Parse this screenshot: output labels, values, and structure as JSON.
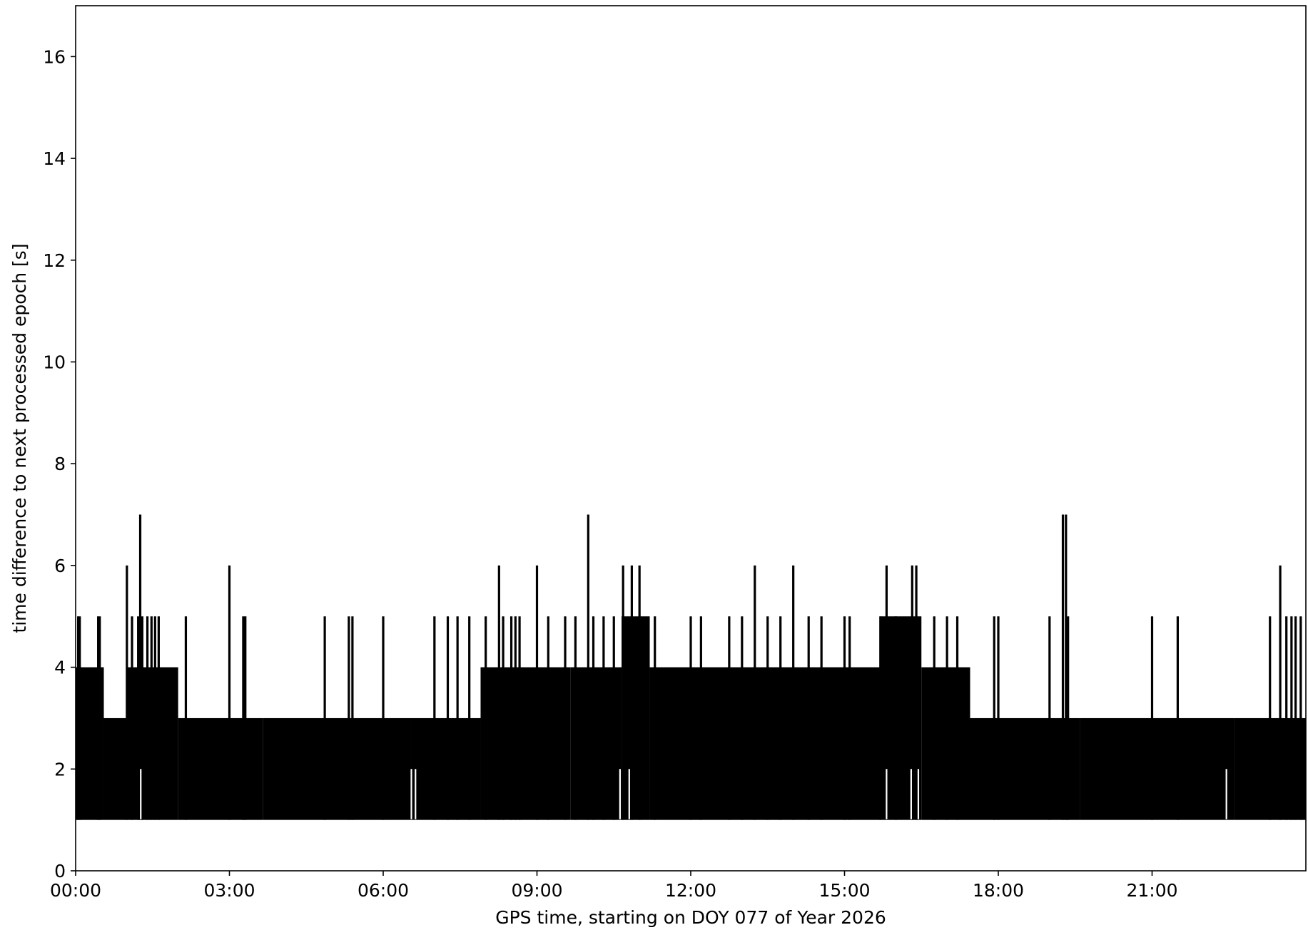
{
  "chart_data": {
    "type": "line",
    "title": "",
    "xlabel": "GPS time, starting on DOY 077 of Year 2026",
    "ylabel": "time difference to next processed epoch [s]",
    "xlim_hours": [
      0,
      24
    ],
    "ylim": [
      0,
      17
    ],
    "x_ticks": [
      {
        "hours": 0,
        "label": "00:00"
      },
      {
        "hours": 3,
        "label": "03:00"
      },
      {
        "hours": 6,
        "label": "06:00"
      },
      {
        "hours": 9,
        "label": "09:00"
      },
      {
        "hours": 12,
        "label": "12:00"
      },
      {
        "hours": 15,
        "label": "15:00"
      },
      {
        "hours": 18,
        "label": "18:00"
      },
      {
        "hours": 21,
        "label": "21:00"
      }
    ],
    "y_ticks": [
      {
        "value": 0,
        "label": "0"
      },
      {
        "value": 2,
        "label": "2"
      },
      {
        "value": 4,
        "label": "4"
      },
      {
        "value": 6,
        "label": "6"
      },
      {
        "value": 8,
        "label": "8"
      },
      {
        "value": 10,
        "label": "10"
      },
      {
        "value": 12,
        "label": "12"
      },
      {
        "value": 14,
        "label": "14"
      },
      {
        "value": 16,
        "label": "16"
      }
    ],
    "grid": false,
    "legend": "none",
    "line_color": "#000000",
    "baseline_value": 1,
    "dense_bands": [
      {
        "start_hours": 0.0,
        "end_hours": 0.55,
        "upper": 4
      },
      {
        "start_hours": 0.55,
        "end_hours": 1.0,
        "upper": 3
      },
      {
        "start_hours": 1.0,
        "end_hours": 2.0,
        "upper": 4
      },
      {
        "start_hours": 2.0,
        "end_hours": 3.65,
        "upper": 3
      },
      {
        "start_hours": 3.65,
        "end_hours": 6.55,
        "upper": 3
      },
      {
        "start_hours": 6.55,
        "end_hours": 7.9,
        "upper": 3
      },
      {
        "start_hours": 7.9,
        "end_hours": 9.65,
        "upper": 4
      },
      {
        "start_hours": 9.65,
        "end_hours": 10.65,
        "upper": 4
      },
      {
        "start_hours": 10.65,
        "end_hours": 11.2,
        "upper": 5
      },
      {
        "start_hours": 11.2,
        "end_hours": 12.0,
        "upper": 4
      },
      {
        "start_hours": 12.0,
        "end_hours": 15.7,
        "upper": 4
      },
      {
        "start_hours": 15.7,
        "end_hours": 16.5,
        "upper": 5
      },
      {
        "start_hours": 16.5,
        "end_hours": 17.45,
        "upper": 4
      },
      {
        "start_hours": 17.45,
        "end_hours": 19.6,
        "upper": 3
      },
      {
        "start_hours": 19.6,
        "end_hours": 22.6,
        "upper": 3
      },
      {
        "start_hours": 22.6,
        "end_hours": 24.0,
        "upper": 3
      }
    ],
    "spikes": [
      {
        "hours": 0.05,
        "value": 5
      },
      {
        "hours": 0.08,
        "value": 5
      },
      {
        "hours": 0.44,
        "value": 5
      },
      {
        "hours": 0.47,
        "value": 5
      },
      {
        "hours": 1.0,
        "value": 6
      },
      {
        "hours": 1.1,
        "value": 5
      },
      {
        "hours": 1.22,
        "value": 5
      },
      {
        "hours": 1.26,
        "value": 7
      },
      {
        "hours": 1.3,
        "value": 5
      },
      {
        "hours": 1.4,
        "value": 5
      },
      {
        "hours": 1.48,
        "value": 5
      },
      {
        "hours": 1.55,
        "value": 5
      },
      {
        "hours": 1.62,
        "value": 5
      },
      {
        "hours": 2.15,
        "value": 5
      },
      {
        "hours": 3.0,
        "value": 6
      },
      {
        "hours": 3.27,
        "value": 5
      },
      {
        "hours": 3.31,
        "value": 5
      },
      {
        "hours": 4.86,
        "value": 5
      },
      {
        "hours": 5.33,
        "value": 5
      },
      {
        "hours": 5.4,
        "value": 5
      },
      {
        "hours": 6.0,
        "value": 5
      },
      {
        "hours": 7.0,
        "value": 5
      },
      {
        "hours": 7.26,
        "value": 5
      },
      {
        "hours": 7.45,
        "value": 5
      },
      {
        "hours": 7.68,
        "value": 5
      },
      {
        "hours": 8.0,
        "value": 5
      },
      {
        "hours": 8.26,
        "value": 6
      },
      {
        "hours": 8.34,
        "value": 5
      },
      {
        "hours": 8.5,
        "value": 5
      },
      {
        "hours": 8.58,
        "value": 5
      },
      {
        "hours": 8.66,
        "value": 5
      },
      {
        "hours": 9.0,
        "value": 6
      },
      {
        "hours": 9.22,
        "value": 5
      },
      {
        "hours": 9.55,
        "value": 5
      },
      {
        "hours": 9.75,
        "value": 5
      },
      {
        "hours": 10.0,
        "value": 7
      },
      {
        "hours": 10.1,
        "value": 5
      },
      {
        "hours": 10.3,
        "value": 5
      },
      {
        "hours": 10.5,
        "value": 5
      },
      {
        "hours": 10.68,
        "value": 6
      },
      {
        "hours": 10.85,
        "value": 6
      },
      {
        "hours": 11.0,
        "value": 6
      },
      {
        "hours": 11.3,
        "value": 5
      },
      {
        "hours": 12.0,
        "value": 5
      },
      {
        "hours": 12.2,
        "value": 5
      },
      {
        "hours": 12.75,
        "value": 5
      },
      {
        "hours": 13.0,
        "value": 5
      },
      {
        "hours": 13.25,
        "value": 6
      },
      {
        "hours": 13.5,
        "value": 5
      },
      {
        "hours": 13.75,
        "value": 5
      },
      {
        "hours": 14.0,
        "value": 6
      },
      {
        "hours": 14.3,
        "value": 5
      },
      {
        "hours": 14.55,
        "value": 5
      },
      {
        "hours": 15.0,
        "value": 5
      },
      {
        "hours": 15.1,
        "value": 5
      },
      {
        "hours": 15.7,
        "value": 5
      },
      {
        "hours": 15.82,
        "value": 6
      },
      {
        "hours": 16.0,
        "value": 5
      },
      {
        "hours": 16.32,
        "value": 6
      },
      {
        "hours": 16.4,
        "value": 6
      },
      {
        "hours": 16.75,
        "value": 5
      },
      {
        "hours": 17.0,
        "value": 5
      },
      {
        "hours": 17.2,
        "value": 5
      },
      {
        "hours": 17.92,
        "value": 5
      },
      {
        "hours": 18.0,
        "value": 5
      },
      {
        "hours": 19.0,
        "value": 5
      },
      {
        "hours": 19.26,
        "value": 7
      },
      {
        "hours": 19.32,
        "value": 7
      },
      {
        "hours": 19.36,
        "value": 5
      },
      {
        "hours": 21.0,
        "value": 5
      },
      {
        "hours": 21.5,
        "value": 5
      },
      {
        "hours": 23.3,
        "value": 5
      },
      {
        "hours": 23.5,
        "value": 6
      },
      {
        "hours": 23.62,
        "value": 5
      },
      {
        "hours": 23.72,
        "value": 5
      },
      {
        "hours": 23.8,
        "value": 5
      },
      {
        "hours": 23.9,
        "value": 5
      }
    ],
    "gaps": [
      {
        "hours": 1.27,
        "low": 2
      },
      {
        "hours": 6.55,
        "low": 2
      },
      {
        "hours": 6.63,
        "low": 2
      },
      {
        "hours": 10.62,
        "low": 2
      },
      {
        "hours": 10.8,
        "low": 2
      },
      {
        "hours": 15.82,
        "low": 2
      },
      {
        "hours": 16.3,
        "low": 2
      },
      {
        "hours": 16.44,
        "low": 2
      },
      {
        "hours": 22.45,
        "low": 2
      }
    ]
  }
}
